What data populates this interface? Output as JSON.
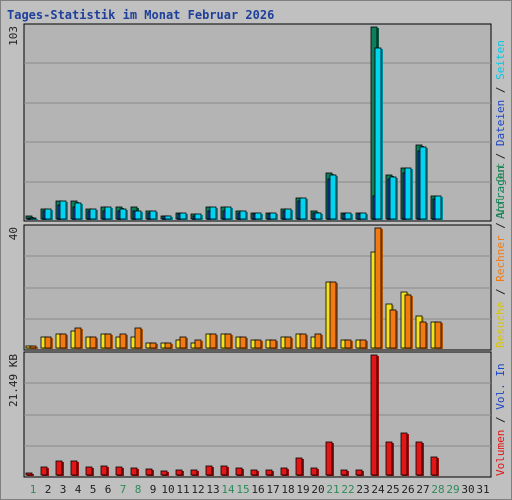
{
  "title": "Tages-Statistik im Monat Februar 2026",
  "colors": {
    "background": "#c0c0c0",
    "plot_bg": "#b4b4b4",
    "grid": "#8a8a8a",
    "title": "#1e3f9a",
    "label_dark": "#202020",
    "weekend": "#2e8b57",
    "anfragen": "#0d7f5c",
    "dateien": "#1d45c6",
    "seiten": "#00d4f0",
    "besuche": "#f3e21c",
    "rechner": "#f27a12",
    "volumen": "#e21616"
  },
  "legend": {
    "top": [
      {
        "text": "Anfragen",
        "color": "#0d7f5c"
      },
      {
        "text": " / ",
        "color": "#202020"
      },
      {
        "text": "Dateien",
        "color": "#1d45c6"
      },
      {
        "text": " / ",
        "color": "#202020"
      },
      {
        "text": "Seiten",
        "color": "#00c8e8"
      }
    ],
    "middle": [
      {
        "text": "Besuche",
        "color": "#d8c600"
      },
      {
        "text": " / ",
        "color": "#202020"
      },
      {
        "text": "Rechner",
        "color": "#f27a12"
      },
      {
        "text": " / ",
        "color": "#202020"
      },
      {
        "text": "Vol. Out",
        "color": "#2e8b57"
      }
    ],
    "bottom": [
      {
        "text": "Volumen",
        "color": "#e21616"
      },
      {
        "text": " / ",
        "color": "#202020"
      },
      {
        "text": "Vol. In",
        "color": "#1d45c6"
      }
    ]
  },
  "chart_data": [
    {
      "type": "bar",
      "panel": "requests",
      "y_max_label": "103",
      "ylim": [
        0,
        103
      ],
      "categories": [
        "1",
        "2",
        "3",
        "4",
        "5",
        "6",
        "7",
        "8",
        "9",
        "10",
        "11",
        "12",
        "13",
        "14",
        "15",
        "16",
        "17",
        "18",
        "19",
        "20",
        "21",
        "22",
        "23",
        "24",
        "25",
        "26",
        "27",
        "28",
        "29",
        "30",
        "31"
      ],
      "weekend_days": [
        "1",
        "7",
        "8",
        "14",
        "15",
        "21",
        "22",
        "28",
        "29"
      ],
      "series": [
        {
          "name": "Anfragen",
          "values": [
            2,
            6,
            10,
            10,
            6,
            7,
            7,
            7,
            5,
            2,
            4,
            3,
            7,
            7,
            5,
            4,
            4,
            6,
            12,
            5,
            25,
            4,
            4,
            103,
            24,
            28,
            40,
            13,
            0,
            0,
            0
          ]
        },
        {
          "name": "Dateien",
          "values": [
            1,
            5,
            8,
            7,
            5,
            5,
            5,
            5,
            4,
            2,
            3,
            2,
            5,
            5,
            4,
            3,
            3,
            5,
            10,
            4,
            22,
            3,
            3,
            13,
            22,
            25,
            37,
            11,
            0,
            0,
            0
          ]
        },
        {
          "name": "Seiten",
          "values": [
            1,
            6,
            10,
            9,
            6,
            7,
            6,
            5,
            5,
            2,
            4,
            3,
            7,
            7,
            5,
            4,
            4,
            6,
            12,
            4,
            24,
            4,
            4,
            92,
            23,
            28,
            39,
            13,
            0,
            0,
            0
          ]
        }
      ]
    },
    {
      "type": "bar",
      "panel": "visits",
      "y_max_label": "40",
      "ylim": [
        0,
        40
      ],
      "categories": [
        "1",
        "2",
        "3",
        "4",
        "5",
        "6",
        "7",
        "8",
        "9",
        "10",
        "11",
        "12",
        "13",
        "14",
        "15",
        "16",
        "17",
        "18",
        "19",
        "20",
        "21",
        "22",
        "23",
        "24",
        "25",
        "26",
        "27",
        "28",
        "29",
        "30",
        "31"
      ],
      "series": [
        {
          "name": "Besuche",
          "values": [
            1,
            4,
            5,
            6,
            4,
            5,
            4,
            4,
            2,
            2,
            3,
            2,
            5,
            5,
            4,
            3,
            3,
            4,
            5,
            4,
            22,
            3,
            3,
            32,
            15,
            19,
            11,
            9,
            0,
            0,
            0
          ]
        },
        {
          "name": "Rechner",
          "values": [
            1,
            4,
            5,
            7,
            4,
            5,
            5,
            7,
            2,
            2,
            4,
            3,
            5,
            5,
            4,
            3,
            3,
            4,
            5,
            5,
            22,
            3,
            3,
            40,
            13,
            18,
            9,
            9,
            0,
            0,
            0
          ]
        }
      ]
    },
    {
      "type": "bar",
      "panel": "volume",
      "y_max_label": "21.49 KB",
      "ylim": [
        0,
        21.49
      ],
      "categories": [
        "1",
        "2",
        "3",
        "4",
        "5",
        "6",
        "7",
        "8",
        "9",
        "10",
        "11",
        "12",
        "13",
        "14",
        "15",
        "16",
        "17",
        "18",
        "19",
        "20",
        "21",
        "22",
        "23",
        "24",
        "25",
        "26",
        "27",
        "28",
        "29",
        "30",
        "31"
      ],
      "series": [
        {
          "name": "Volumen",
          "values": [
            0.5,
            1.6,
            2.6,
            2.6,
            1.6,
            1.8,
            1.6,
            1.5,
            1.3,
            0.9,
            1.1,
            1.0,
            1.8,
            1.8,
            1.4,
            1.1,
            1.1,
            1.5,
            3.2,
            1.4,
            6.0,
            1.1,
            1.1,
            21.49,
            6.0,
            7.7,
            6.0,
            3.4,
            0,
            0,
            0
          ]
        }
      ]
    }
  ]
}
